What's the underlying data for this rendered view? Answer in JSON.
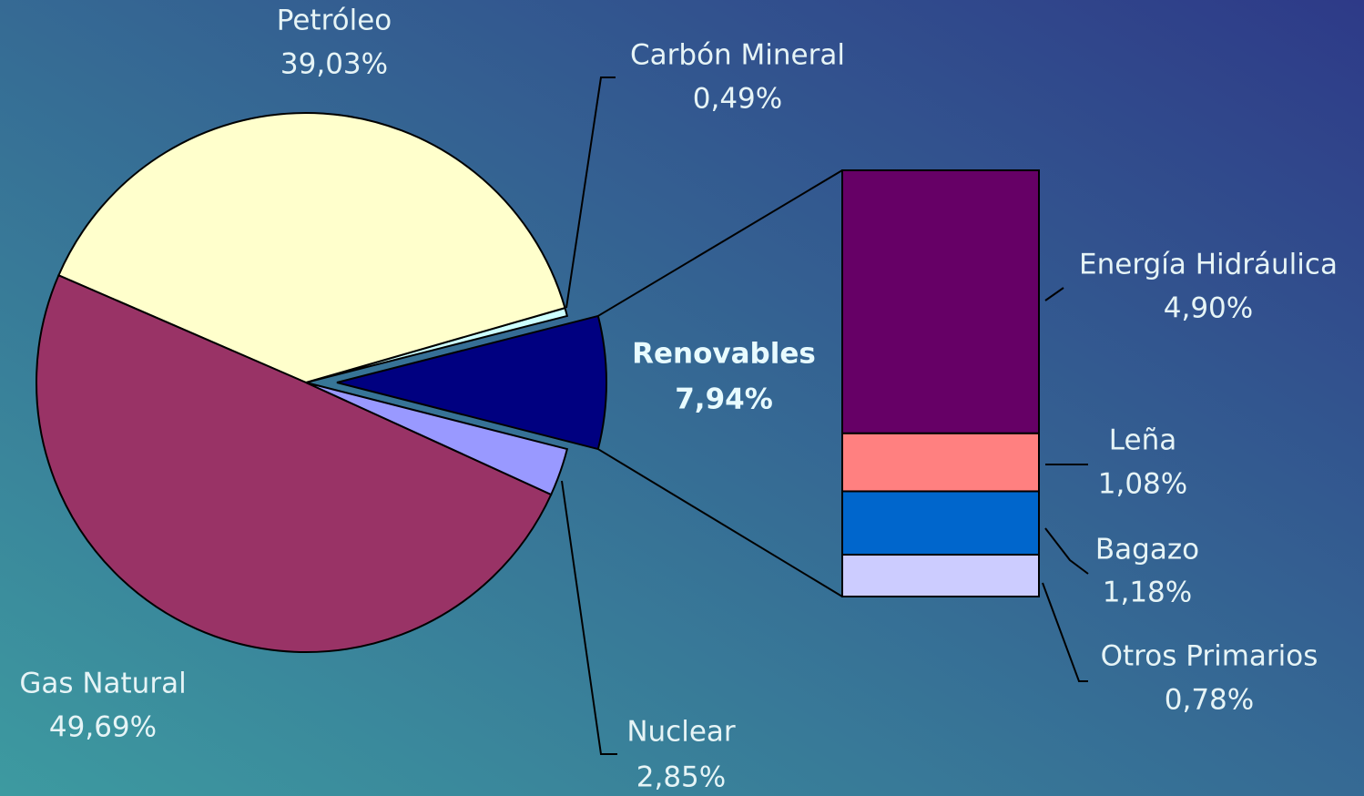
{
  "chart_data": [
    {
      "type": "pie",
      "categories": [
        "Renovables",
        "Carbón Mineral",
        "Petróleo",
        "Gas Natural",
        "Nuclear"
      ],
      "values": [
        7.94,
        0.49,
        39.03,
        49.69,
        2.85
      ],
      "value_labels": [
        "7,94%",
        "0,49%",
        "39,03%",
        "49,69%",
        "2,85%"
      ],
      "colors": [
        "#000080",
        "#ccffff",
        "#ffffcc",
        "#993366",
        "#9999ff"
      ]
    },
    {
      "type": "stacked_bar",
      "categories": [
        "Energía Hidráulica",
        "Leña",
        "Bagazo",
        "Otros Primarios"
      ],
      "values": [
        4.9,
        1.08,
        1.18,
        0.78
      ],
      "value_labels": [
        "4,90%",
        "1,08%",
        "1,18%",
        "0,78%"
      ],
      "colors": [
        "#660066",
        "#ff8080",
        "#0066cc",
        "#ccccff"
      ]
    }
  ]
}
